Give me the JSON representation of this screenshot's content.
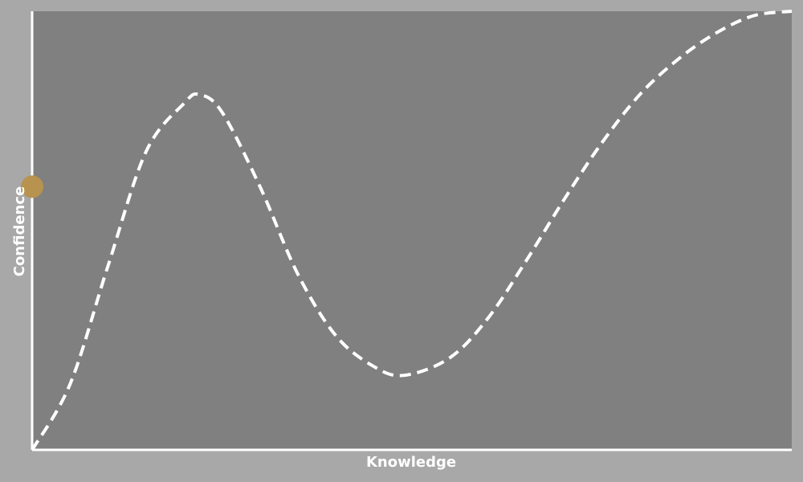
{
  "chart_data": {
    "type": "line",
    "title": "",
    "xlabel": "Knowledge",
    "ylabel": "Confidence",
    "xlim": [
      0,
      1
    ],
    "ylim": [
      0,
      1
    ],
    "grid": false,
    "legend": "none",
    "series": [
      {
        "x": [
          0,
          0.05,
          0.1,
          0.15,
          0.2,
          0.22,
          0.25,
          0.3,
          0.35,
          0.4,
          0.45,
          0.49,
          0.55,
          0.6,
          0.65,
          0.7,
          0.75,
          0.8,
          0.85,
          0.9,
          0.95,
          1.0
        ],
        "y": [
          0.0,
          0.15,
          0.42,
          0.68,
          0.79,
          0.81,
          0.77,
          0.6,
          0.4,
          0.26,
          0.19,
          0.17,
          0.21,
          0.3,
          0.43,
          0.57,
          0.7,
          0.81,
          0.89,
          0.95,
          0.99,
          1.0
        ],
        "style": "dashed",
        "color": "#ffffff"
      }
    ],
    "marker": {
      "x": 0,
      "y": 0.6,
      "color": "#b8924f"
    }
  },
  "colors": {
    "background": "#a8a8a8",
    "plot_area": "#808080",
    "axis": "#ffffff",
    "curve": "#ffffff"
  }
}
